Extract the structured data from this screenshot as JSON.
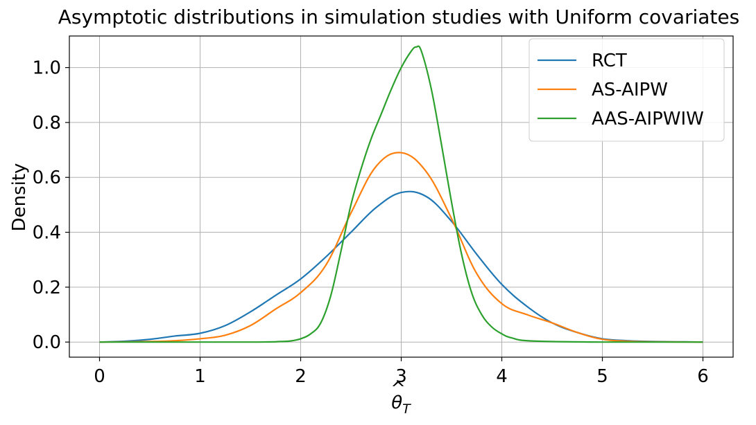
{
  "chart_data": {
    "type": "line",
    "title": "Asymptotic distributions in simulation studies with Uniform covariates",
    "xlabel": "θ̂_T",
    "ylabel": "Density",
    "xlim": [
      -0.3,
      6.3
    ],
    "ylim": [
      -0.055,
      1.115
    ],
    "xticks": [
      0,
      1,
      2,
      3,
      4,
      5,
      6
    ],
    "xtick_labels": [
      "0",
      "1",
      "2",
      "3",
      "4",
      "5",
      "6"
    ],
    "yticks": [
      0.0,
      0.2,
      0.4,
      0.6,
      0.8,
      1.0
    ],
    "ytick_labels": [
      "0.0",
      "0.2",
      "0.4",
      "0.6",
      "0.8",
      "1.0"
    ],
    "grid": true,
    "legend_position": "top-right",
    "series": [
      {
        "name": "RCT",
        "color": "#1f77b4",
        "x": [
          0,
          0.25,
          0.5,
          0.75,
          1.0,
          1.25,
          1.5,
          1.75,
          2.0,
          2.25,
          2.5,
          2.75,
          3.0,
          3.25,
          3.5,
          3.75,
          4.0,
          4.25,
          4.5,
          4.75,
          5.0,
          5.25,
          5.5,
          5.75,
          6.0
        ],
        "y": [
          0.0,
          0.003,
          0.01,
          0.022,
          0.032,
          0.06,
          0.11,
          0.17,
          0.23,
          0.31,
          0.4,
          0.49,
          0.545,
          0.53,
          0.44,
          0.32,
          0.21,
          0.13,
          0.07,
          0.035,
          0.012,
          0.005,
          0.002,
          0.001,
          0.0
        ]
      },
      {
        "name": "AS-AIPW",
        "color": "#ff7f0e",
        "x": [
          0,
          0.5,
          0.75,
          1.0,
          1.25,
          1.5,
          1.75,
          2.0,
          2.25,
          2.5,
          2.75,
          3.0,
          3.25,
          3.5,
          3.75,
          4.0,
          4.25,
          4.5,
          4.75,
          5.0,
          5.25,
          5.5,
          6.0
        ],
        "y": [
          0.0,
          0.002,
          0.005,
          0.012,
          0.025,
          0.06,
          0.12,
          0.18,
          0.28,
          0.47,
          0.64,
          0.69,
          0.62,
          0.45,
          0.25,
          0.14,
          0.1,
          0.07,
          0.035,
          0.01,
          0.003,
          0.001,
          0.0
        ]
      },
      {
        "name": "AAS-AIPWIW",
        "color": "#2ca02c",
        "x": [
          0,
          1.5,
          1.8,
          1.9,
          2.0,
          2.1,
          2.2,
          2.3,
          2.4,
          2.5,
          2.6,
          2.7,
          2.8,
          2.9,
          3.0,
          3.1,
          3.15,
          3.2,
          3.3,
          3.4,
          3.5,
          3.6,
          3.7,
          3.8,
          3.9,
          4.0,
          4.1,
          4.3,
          5.0,
          6.0
        ],
        "y": [
          0.0,
          0.0,
          0.002,
          0.004,
          0.012,
          0.03,
          0.07,
          0.17,
          0.33,
          0.5,
          0.63,
          0.74,
          0.83,
          0.92,
          1.0,
          1.06,
          1.075,
          1.06,
          0.92,
          0.72,
          0.51,
          0.32,
          0.18,
          0.1,
          0.055,
          0.03,
          0.015,
          0.004,
          0.0,
          0.0
        ]
      }
    ]
  }
}
